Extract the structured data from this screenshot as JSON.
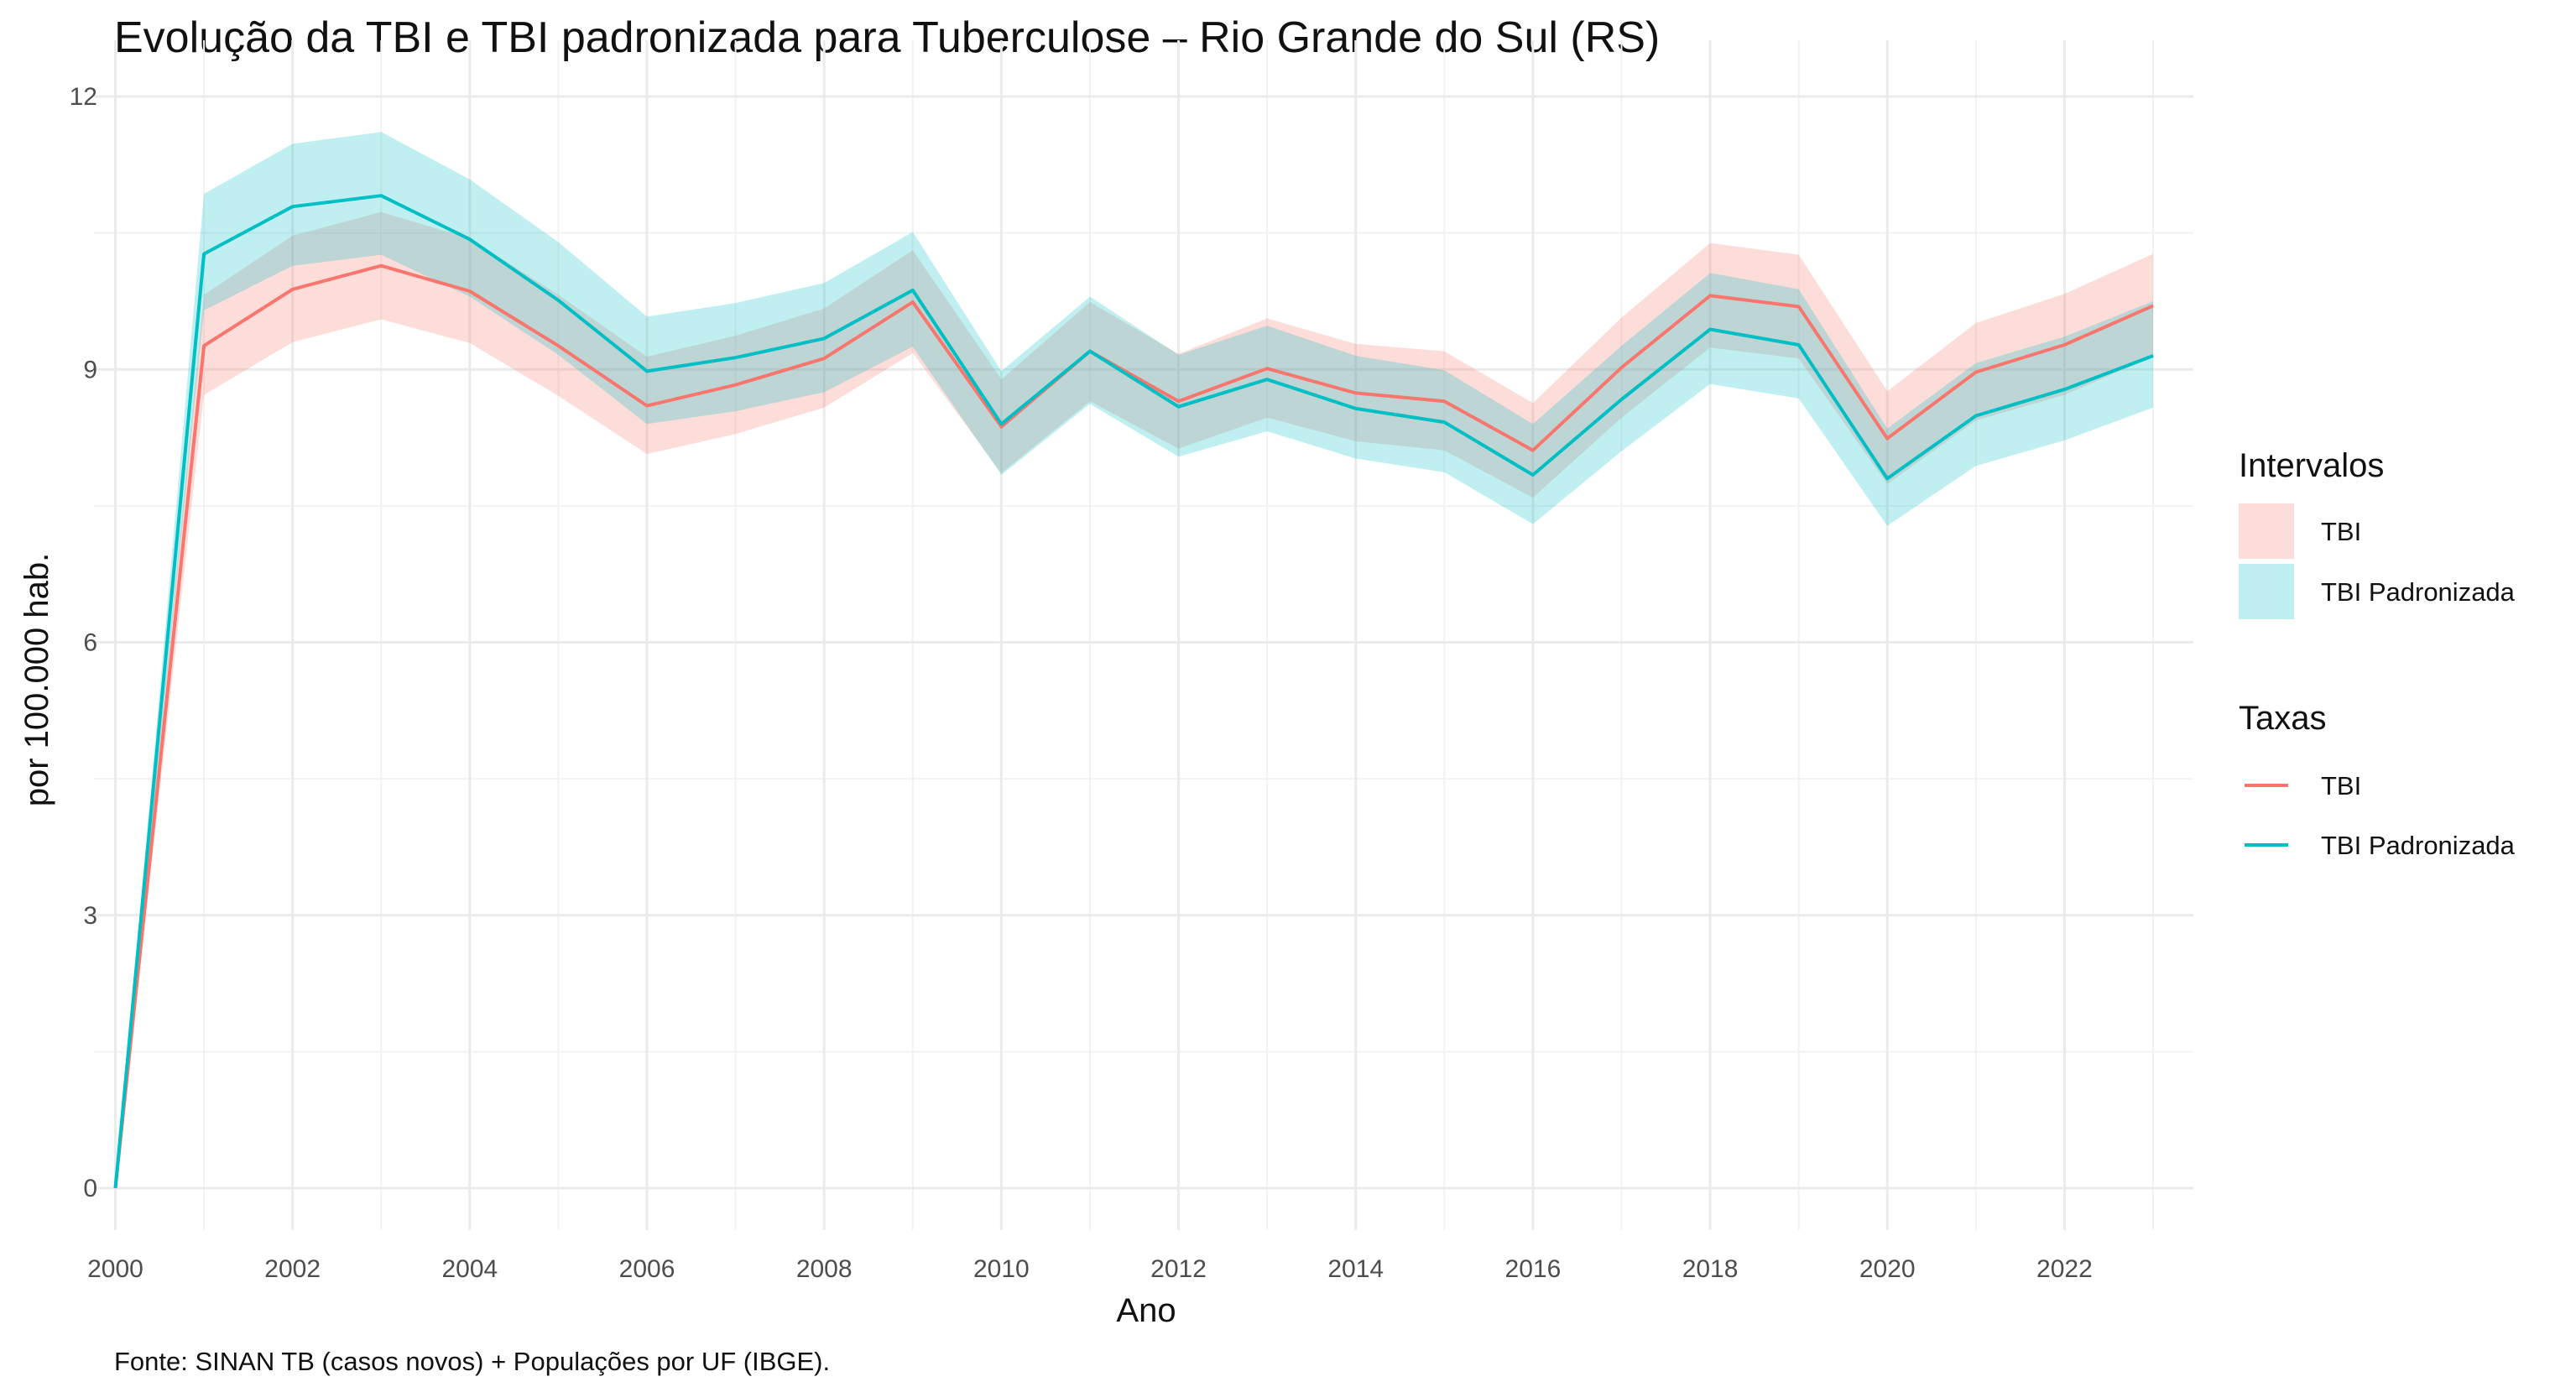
{
  "chart_data": {
    "type": "line",
    "title": "Evolução da TBI e TBI padronizada para Tuberculose – Rio Grande do Sul (RS)",
    "xlabel": "Ano",
    "ylabel": "por 100.000 hab.",
    "caption": "Fonte: SINAN TB (casos novos) + Populações por UF (IBGE).",
    "xlim": [
      2000,
      2023
    ],
    "ylim": [
      0,
      12
    ],
    "x_ticks": [
      "2000",
      "2002",
      "2004",
      "2006",
      "2008",
      "2010",
      "2012",
      "2014",
      "2016",
      "2018",
      "2020",
      "2022"
    ],
    "y_ticks": [
      "0",
      "3",
      "6",
      "9",
      "12"
    ],
    "grid": true,
    "legend_position": "right",
    "x": [
      2000,
      2001,
      2002,
      2003,
      2004,
      2005,
      2006,
      2007,
      2008,
      2009,
      2010,
      2011,
      2012,
      2013,
      2014,
      2015,
      2016,
      2017,
      2018,
      2019,
      2020,
      2021,
      2022,
      2023
    ],
    "series": [
      {
        "name": "TBI",
        "color": "#F8766D",
        "values": [
          0,
          9.26,
          9.88,
          10.14,
          9.86,
          9.26,
          8.6,
          8.83,
          9.12,
          9.74,
          8.37,
          9.2,
          8.65,
          9.01,
          8.74,
          8.65,
          8.11,
          9.02,
          9.81,
          9.69,
          8.24,
          8.97,
          9.27,
          9.7
        ],
        "lower": [
          0,
          8.72,
          9.3,
          9.55,
          9.29,
          8.71,
          8.07,
          8.29,
          8.58,
          9.18,
          7.86,
          8.65,
          8.13,
          8.47,
          8.21,
          8.11,
          7.59,
          8.47,
          9.24,
          9.12,
          7.74,
          8.44,
          8.72,
          9.14
        ],
        "upper": [
          0,
          9.82,
          10.47,
          10.73,
          10.44,
          9.82,
          9.14,
          9.37,
          9.67,
          10.31,
          8.89,
          9.74,
          9.17,
          9.56,
          9.28,
          9.2,
          8.63,
          9.57,
          10.39,
          10.26,
          8.76,
          9.51,
          9.83,
          10.27
        ]
      },
      {
        "name": "TBI Padronizada",
        "color": "#00BFC4",
        "values": [
          0,
          10.27,
          10.79,
          10.91,
          10.43,
          9.76,
          8.98,
          9.13,
          9.34,
          9.87,
          8.4,
          9.2,
          8.59,
          8.89,
          8.57,
          8.42,
          7.84,
          8.67,
          9.44,
          9.27,
          7.8,
          8.49,
          8.78,
          9.15
        ],
        "lower": [
          0,
          9.65,
          10.14,
          10.26,
          9.8,
          9.16,
          8.4,
          8.54,
          8.75,
          9.25,
          7.84,
          8.62,
          8.04,
          8.32,
          8.02,
          7.87,
          7.3,
          8.1,
          8.84,
          8.68,
          7.28,
          7.94,
          8.22,
          8.58
        ],
        "upper": [
          0,
          10.93,
          11.48,
          11.61,
          11.09,
          10.4,
          9.58,
          9.73,
          9.95,
          10.51,
          8.98,
          9.8,
          9.16,
          9.48,
          9.15,
          8.99,
          8.4,
          9.26,
          10.06,
          9.88,
          8.35,
          9.07,
          9.36,
          9.75
        ]
      }
    ],
    "legend": {
      "intervals_title": "Intervalos",
      "lines_title": "Taxas",
      "items": [
        "TBI",
        "TBI Padronizada"
      ]
    }
  }
}
